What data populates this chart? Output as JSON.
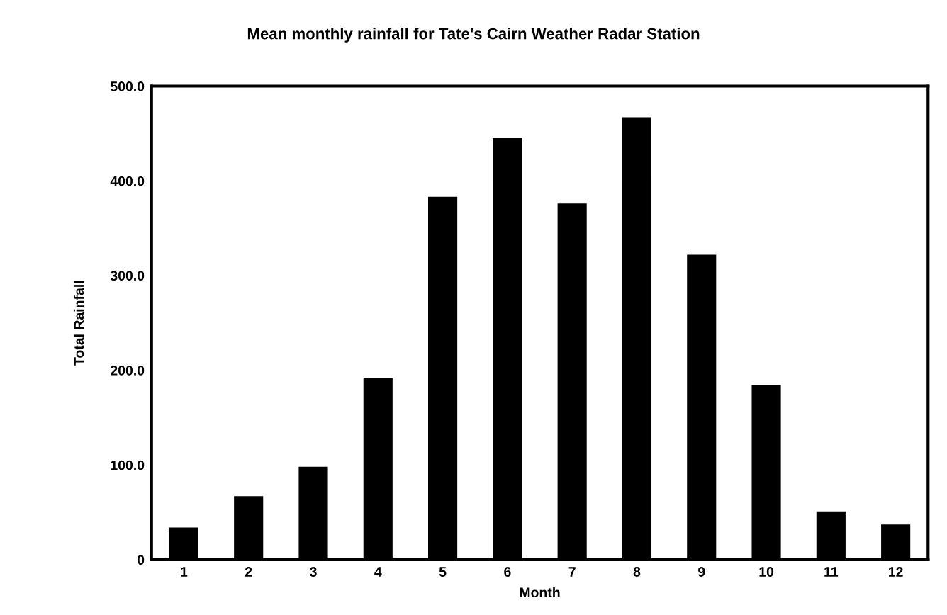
{
  "chart_data": {
    "type": "bar",
    "title": "Mean monthly rainfall for Tate's Cairn Weather Radar Station",
    "xlabel": "Month",
    "ylabel": "Total Rainfall",
    "categories": [
      "1",
      "2",
      "3",
      "4",
      "5",
      "6",
      "7",
      "8",
      "9",
      "10",
      "11",
      "12"
    ],
    "values": [
      33,
      66,
      97,
      191,
      382,
      444,
      375,
      466,
      321,
      183,
      50,
      36
    ],
    "color": "#000000",
    "ylim": [
      0,
      500
    ],
    "yticks": [
      0,
      {
        "value": 100,
        "label": "100.0"
      },
      {
        "value": 200,
        "label": "200.0"
      },
      {
        "value": 300,
        "label": "300.0"
      },
      {
        "value": 400,
        "label": "400.0"
      },
      {
        "value": 500,
        "label": "500.0"
      }
    ],
    "grid": false,
    "legend": false
  }
}
